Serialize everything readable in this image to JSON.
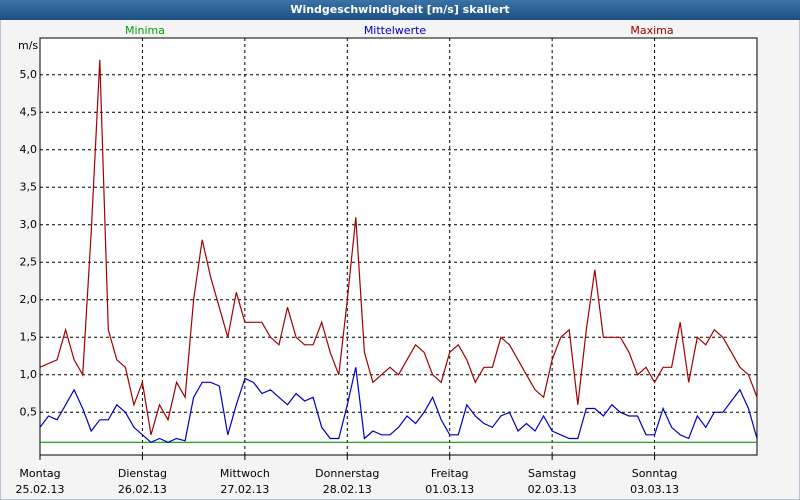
{
  "chart_data": {
    "type": "line",
    "title": "Windgeschwindigkeit [m/s] skaliert",
    "y_label": "m/s",
    "x": [
      0,
      2,
      4,
      6,
      8,
      10,
      12,
      14,
      16,
      18,
      20,
      22,
      24,
      26,
      28,
      30,
      32,
      34,
      36,
      38,
      40,
      42,
      44,
      46,
      48,
      50,
      52,
      54,
      56,
      58,
      60,
      62,
      64,
      66,
      68,
      70,
      72,
      74,
      76,
      78,
      80,
      82,
      84,
      86,
      88,
      90,
      92,
      94,
      96,
      98,
      100,
      102,
      104,
      106,
      108,
      110,
      112,
      114,
      116,
      118,
      120,
      122,
      124,
      126,
      128,
      130,
      132,
      134,
      136,
      138,
      140,
      142,
      144,
      146,
      148,
      150,
      152,
      154,
      156,
      158,
      160,
      162,
      164,
      166,
      168
    ],
    "xlim": [
      0,
      168
    ],
    "xticks": [
      {
        "value": 0,
        "label": "Montag",
        "date": "25.02.13"
      },
      {
        "value": 24,
        "label": "Dienstag",
        "date": "26.02.13"
      },
      {
        "value": 48,
        "label": "Mittwoch",
        "date": "27.02.13"
      },
      {
        "value": 72,
        "label": "Donnerstag",
        "date": "28.02.13"
      },
      {
        "value": 96,
        "label": "Freitag",
        "date": "01.03.13"
      },
      {
        "value": 120,
        "label": "Samstag",
        "date": "02.03.13"
      },
      {
        "value": 144,
        "label": "Sonntag",
        "date": "03.03.13"
      }
    ],
    "ylim": [
      -0.07,
      5.49
    ],
    "yticks": [
      {
        "value": 0.5,
        "label": "0,5"
      },
      {
        "value": 1.0,
        "label": "1,0"
      },
      {
        "value": 1.5,
        "label": "1,5"
      },
      {
        "value": 2.0,
        "label": "2,0"
      },
      {
        "value": 2.5,
        "label": "2,5"
      },
      {
        "value": 3.0,
        "label": "3,0"
      },
      {
        "value": 3.5,
        "label": "3,5"
      },
      {
        "value": 4.0,
        "label": "4,0"
      },
      {
        "value": 4.5,
        "label": "4,5"
      },
      {
        "value": 5.0,
        "label": "5,0"
      }
    ],
    "grid": true,
    "series": [
      {
        "name": "Minima",
        "color": "#00a000",
        "values": [
          0.1,
          0.1,
          0.1,
          0.1,
          0.1,
          0.1,
          0.1,
          0.1,
          0.1,
          0.1,
          0.1,
          0.1,
          0.1,
          0.1,
          0.1,
          0.1,
          0.1,
          0.1,
          0.1,
          0.1,
          0.1,
          0.1,
          0.1,
          0.1,
          0.1,
          0.1,
          0.1,
          0.1,
          0.1,
          0.1,
          0.1,
          0.1,
          0.1,
          0.1,
          0.1,
          0.1,
          0.1,
          0.1,
          0.1,
          0.1,
          0.1,
          0.1,
          0.1,
          0.1,
          0.1,
          0.1,
          0.1,
          0.1,
          0.1,
          0.1,
          0.1,
          0.1,
          0.1,
          0.1,
          0.1,
          0.1,
          0.1,
          0.1,
          0.1,
          0.1,
          0.1,
          0.1,
          0.1,
          0.1,
          0.1,
          0.1,
          0.1,
          0.1,
          0.1,
          0.1,
          0.1,
          0.1,
          0.1,
          0.1,
          0.1,
          0.1,
          0.1,
          0.1,
          0.1,
          0.1,
          0.1,
          0.1,
          0.1,
          0.1,
          0.1
        ]
      },
      {
        "name": "Mittelwerte",
        "color": "#0000c0",
        "values": [
          0.3,
          0.45,
          0.4,
          0.6,
          0.8,
          0.55,
          0.25,
          0.4,
          0.4,
          0.6,
          0.5,
          0.3,
          0.2,
          0.1,
          0.15,
          0.1,
          0.15,
          0.12,
          0.7,
          0.9,
          0.9,
          0.85,
          0.2,
          0.6,
          0.95,
          0.9,
          0.75,
          0.8,
          0.7,
          0.6,
          0.75,
          0.65,
          0.7,
          0.3,
          0.15,
          0.15,
          0.6,
          1.1,
          0.15,
          0.25,
          0.2,
          0.2,
          0.3,
          0.45,
          0.35,
          0.5,
          0.7,
          0.4,
          0.2,
          0.2,
          0.6,
          0.45,
          0.35,
          0.3,
          0.45,
          0.5,
          0.25,
          0.35,
          0.25,
          0.45,
          0.25,
          0.2,
          0.15,
          0.15,
          0.55,
          0.55,
          0.45,
          0.6,
          0.5,
          0.45,
          0.45,
          0.2,
          0.2,
          0.55,
          0.3,
          0.2,
          0.15,
          0.45,
          0.3,
          0.5,
          0.5,
          0.65,
          0.8,
          0.55,
          0.15
        ]
      },
      {
        "name": "Maxima",
        "color": "#a00000",
        "values": [
          1.1,
          1.15,
          1.2,
          1.6,
          1.2,
          1.0,
          2.9,
          5.2,
          1.6,
          1.2,
          1.1,
          0.6,
          0.9,
          0.2,
          0.6,
          0.4,
          0.9,
          0.7,
          2.0,
          2.8,
          2.3,
          1.9,
          1.5,
          2.1,
          1.7,
          1.7,
          1.7,
          1.5,
          1.4,
          1.9,
          1.5,
          1.4,
          1.4,
          1.7,
          1.3,
          1.0,
          2.0,
          3.1,
          1.3,
          0.9,
          1.0,
          1.1,
          1.0,
          1.2,
          1.4,
          1.3,
          1.0,
          0.9,
          1.3,
          1.4,
          1.2,
          0.9,
          1.1,
          1.1,
          1.5,
          1.4,
          1.2,
          1.0,
          0.8,
          0.7,
          1.2,
          1.5,
          1.6,
          0.6,
          1.6,
          2.4,
          1.5,
          1.5,
          1.5,
          1.3,
          1.0,
          1.1,
          0.9,
          1.1,
          1.1,
          1.7,
          0.9,
          1.5,
          1.4,
          1.6,
          1.5,
          1.3,
          1.1,
          1.0,
          0.7
        ]
      }
    ]
  }
}
